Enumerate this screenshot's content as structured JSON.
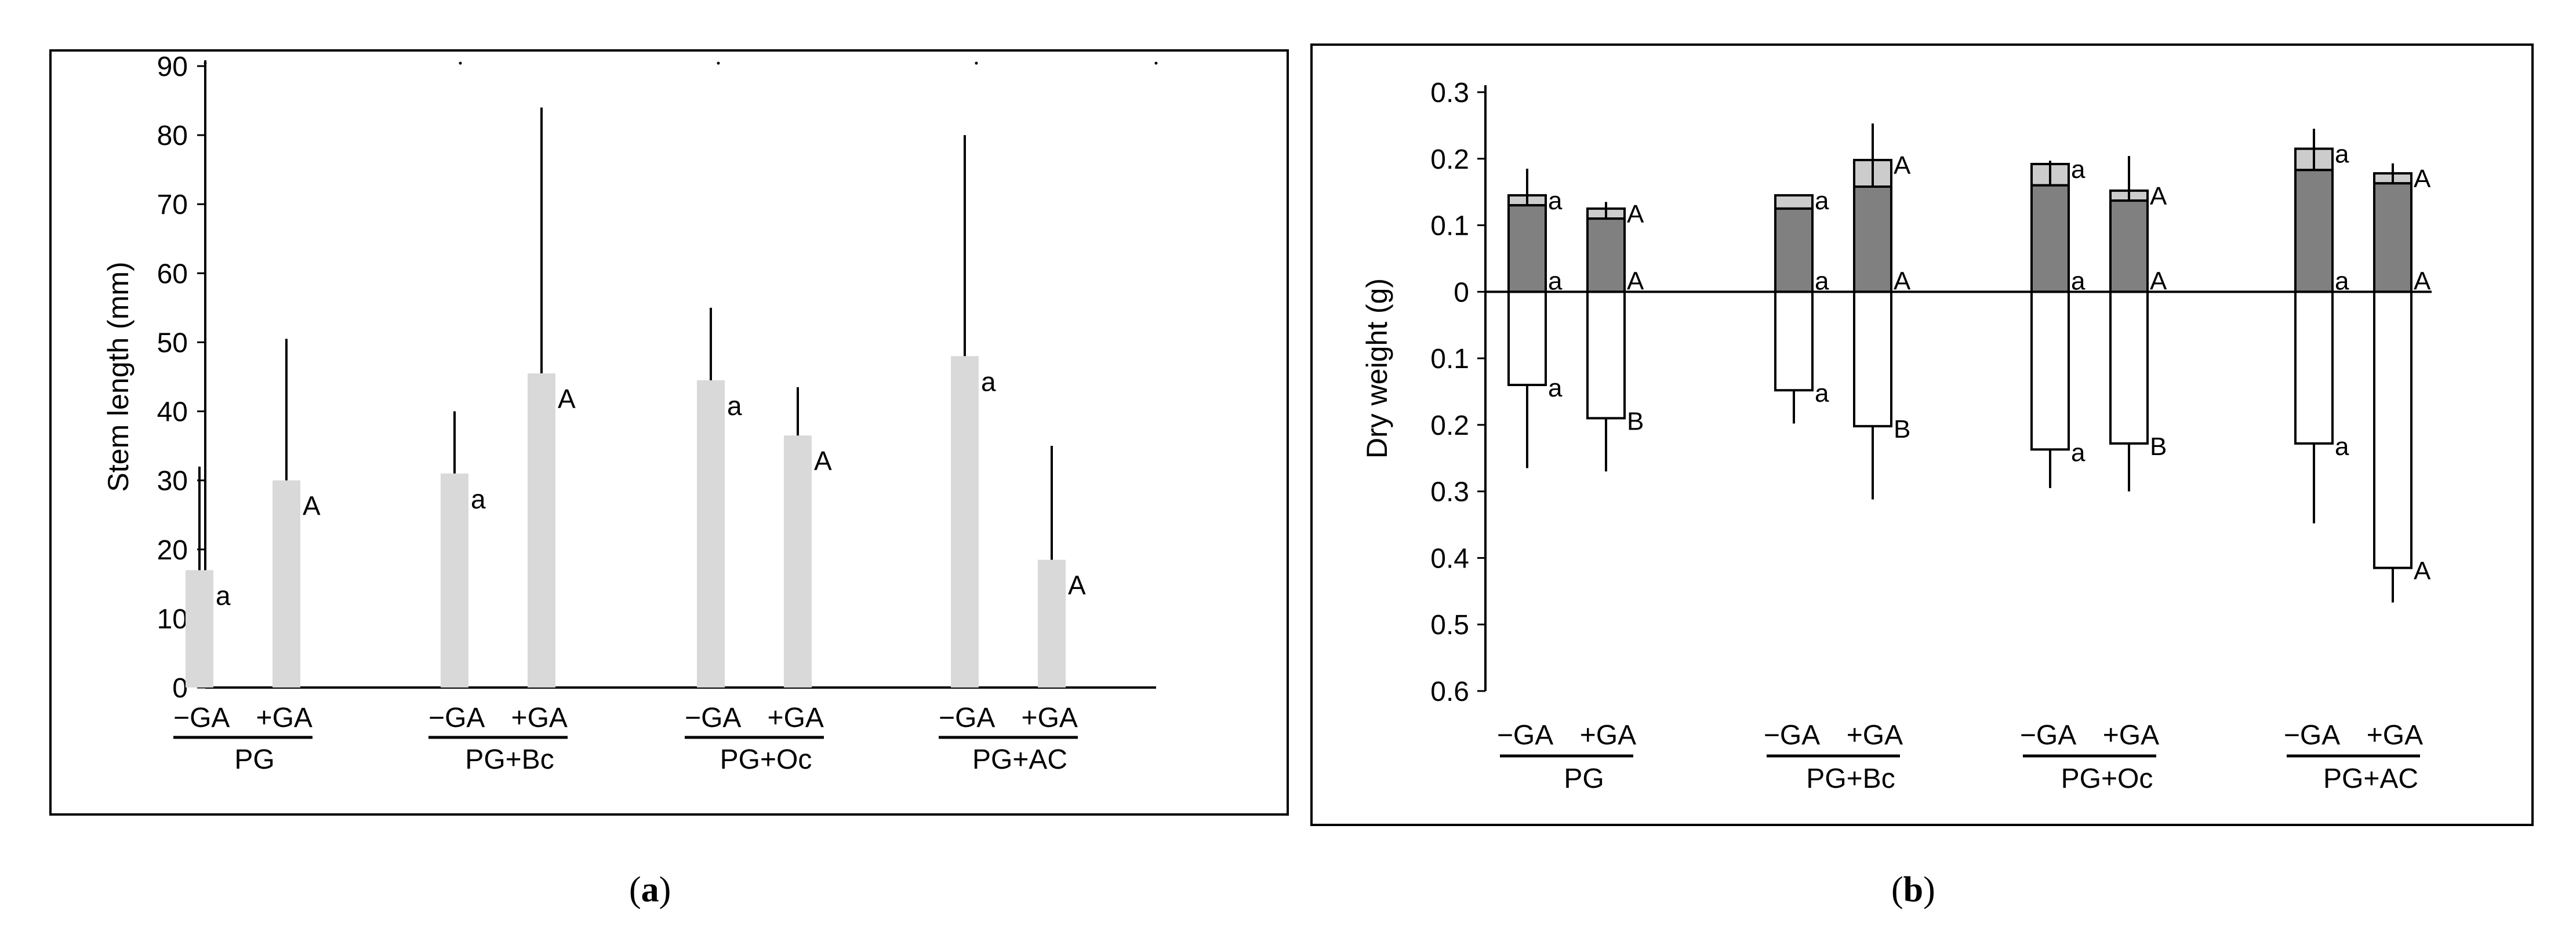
{
  "chart_data": [
    {
      "type": "bar",
      "panel": "a",
      "ylabel": "Stem length (mm)",
      "ylim": [
        0,
        90
      ],
      "yticks": [
        0,
        10,
        20,
        30,
        40,
        50,
        60,
        70,
        80,
        90
      ],
      "groups": [
        "PG",
        "PG+Bc",
        "PG+Oc",
        "PG+AC"
      ],
      "treatments": [
        "−GA",
        "+GA"
      ],
      "bars": [
        {
          "group": "PG",
          "treatment": "−GA",
          "value": 17,
          "error": 15,
          "letter": "a"
        },
        {
          "group": "PG",
          "treatment": "+GA",
          "value": 30,
          "error": 20.5,
          "letter": "A"
        },
        {
          "group": "PG+Bc",
          "treatment": "−GA",
          "value": 31,
          "error": 9,
          "letter": "a"
        },
        {
          "group": "PG+Bc",
          "treatment": "+GA",
          "value": 45.5,
          "error": 38.5,
          "letter": "A"
        },
        {
          "group": "PG+Oc",
          "treatment": "−GA",
          "value": 44.5,
          "error": 10.5,
          "letter": "a"
        },
        {
          "group": "PG+Oc",
          "treatment": "+GA",
          "value": 36.5,
          "error": 7,
          "letter": "A"
        },
        {
          "group": "PG+AC",
          "treatment": "−GA",
          "value": 48,
          "error": 32,
          "letter": "a"
        },
        {
          "group": "PG+AC",
          "treatment": "+GA",
          "value": 18.5,
          "error": 16.5,
          "letter": "A"
        }
      ],
      "bar_color": "#d9d9d9"
    },
    {
      "type": "bar",
      "panel": "b",
      "ylabel": "Dry weight (g)",
      "ylim": [
        -0.6,
        0.3
      ],
      "yticks": [
        0.3,
        0.2,
        0.1,
        0,
        -0.1,
        -0.2,
        -0.3,
        -0.4,
        -0.5,
        -0.6
      ],
      "ytick_labels": [
        "0.3",
        "0.2",
        "0.1",
        "0",
        "0.1",
        "0.2",
        "0.3",
        "0.4",
        "0.5",
        "0.6"
      ],
      "groups": [
        "PG",
        "PG+Bc",
        "PG+Oc",
        "PG+AC"
      ],
      "treatments": [
        "−GA",
        "+GA"
      ],
      "bars": [
        {
          "group": "PG",
          "treatment": "−GA",
          "stem": 0.13,
          "top": 0.145,
          "top_error": 0.04,
          "top_letter": "a",
          "stem_letter": "a",
          "root": 0.14,
          "root_error": 0.125,
          "root_letter": "a"
        },
        {
          "group": "PG",
          "treatment": "+GA",
          "stem": 0.11,
          "top": 0.125,
          "top_error": 0.01,
          "top_letter": "A",
          "stem_letter": "A",
          "root": 0.19,
          "root_error": 0.08,
          "root_letter": "B"
        },
        {
          "group": "PG+Bc",
          "treatment": "−GA",
          "stem": 0.125,
          "top": 0.145,
          "top_error": 0.0,
          "top_letter": "a",
          "stem_letter": "a",
          "root": 0.148,
          "root_error": 0.05,
          "root_letter": "a"
        },
        {
          "group": "PG+Bc",
          "treatment": "+GA",
          "stem": 0.158,
          "top": 0.198,
          "top_error": 0.055,
          "top_letter": "A",
          "stem_letter": "A",
          "root": 0.202,
          "root_error": 0.11,
          "root_letter": "B"
        },
        {
          "group": "PG+Oc",
          "treatment": "−GA",
          "stem": 0.16,
          "top": 0.192,
          "top_error": 0.005,
          "top_letter": "a",
          "stem_letter": "a",
          "root": 0.237,
          "root_error": 0.058,
          "root_letter": "a"
        },
        {
          "group": "PG+Oc",
          "treatment": "+GA",
          "stem": 0.137,
          "top": 0.152,
          "top_error": 0.052,
          "top_letter": "A",
          "stem_letter": "A",
          "root": 0.228,
          "root_error": 0.072,
          "root_letter": "B"
        },
        {
          "group": "PG+AC",
          "treatment": "−GA",
          "stem": 0.183,
          "top": 0.215,
          "top_error": 0.03,
          "top_letter": "a",
          "stem_letter": "a",
          "root": 0.228,
          "root_error": 0.12,
          "root_letter": "a"
        },
        {
          "group": "PG+AC",
          "treatment": "+GA",
          "stem": 0.163,
          "top": 0.178,
          "top_error": 0.015,
          "top_letter": "A",
          "stem_letter": "A",
          "root": 0.415,
          "root_error": 0.052,
          "root_letter": "A"
        }
      ],
      "colors": {
        "stem": "#808080",
        "top": "#cccccc",
        "root": "#ffffff"
      }
    }
  ],
  "captions": {
    "a": "a",
    "b": "b"
  }
}
